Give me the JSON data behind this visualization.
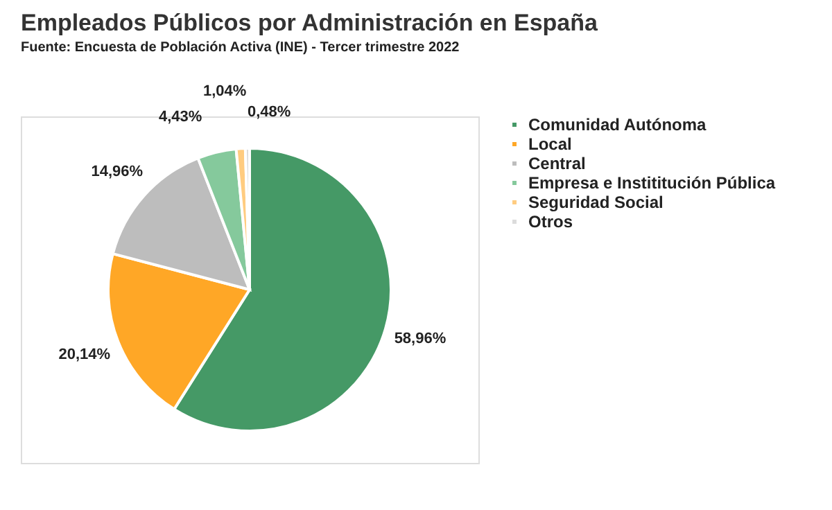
{
  "chart_data": {
    "type": "pie",
    "title": "Empleados Públicos por Administración en España",
    "subtitle": "Fuente: Encuesta de Población Activa (INE) - Tercer trimestre 2022",
    "categories": [
      "Comunidad Autónoma",
      "Local",
      "Central",
      "Empresa e Instititución Pública",
      "Seguridad Social",
      "Otros"
    ],
    "values": [
      58.96,
      20.14,
      14.96,
      4.43,
      1.04,
      0.48
    ],
    "colors": [
      "#459966",
      "#ffa726",
      "#bdbdbd",
      "#85c99c",
      "#ffcc80",
      "#dcdcdc"
    ],
    "value_labels": [
      "58,96%",
      "20,14%",
      "14,96%",
      "4,43%",
      "1,04%",
      "0,48%"
    ],
    "legend": "right"
  }
}
